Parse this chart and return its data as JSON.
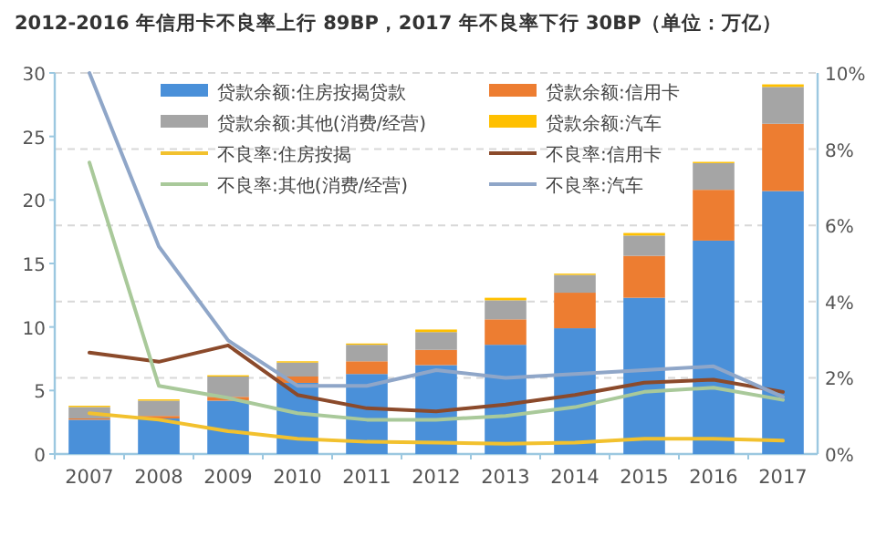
{
  "chart_data": {
    "type": "bar",
    "title": "2012-2016 年信用卡不良率上行 89BP，2017 年不良率下行 30BP（单位：万亿）",
    "categories": [
      "2007",
      "2008",
      "2009",
      "2010",
      "2011",
      "2012",
      "2013",
      "2014",
      "2015",
      "2016",
      "2017"
    ],
    "stacked": true,
    "series": [
      {
        "name": "贷款余额:住房按揭贷款",
        "color": "#4a90d9",
        "values": [
          2.7,
          2.8,
          4.2,
          5.6,
          6.3,
          7.0,
          8.6,
          9.9,
          12.3,
          16.8,
          20.7
        ]
      },
      {
        "name": "贷款余额:信用卡",
        "color": "#ed7d31",
        "values": [
          0.1,
          0.2,
          0.3,
          0.5,
          1.0,
          1.2,
          2.0,
          2.8,
          3.3,
          4.0,
          5.3
        ]
      },
      {
        "name": "贷款余额:其他(消费/经营)",
        "color": "#a5a5a5",
        "values": [
          0.9,
          1.2,
          1.6,
          1.1,
          1.3,
          1.4,
          1.5,
          1.4,
          1.6,
          2.1,
          2.9
        ]
      },
      {
        "name": "贷款余额:汽车",
        "color": "#ffc000",
        "values": [
          0.1,
          0.1,
          0.1,
          0.1,
          0.1,
          0.2,
          0.2,
          0.1,
          0.2,
          0.1,
          0.2
        ]
      },
      {
        "name": "不良率:住房按揭",
        "type": "line",
        "axis": "y2",
        "color": "#f2c12e",
        "values": [
          1.07,
          0.9,
          0.6,
          0.4,
          0.32,
          0.3,
          0.27,
          0.3,
          0.4,
          0.4,
          0.35
        ]
      },
      {
        "name": "不良率:信用卡",
        "type": "line",
        "axis": "y2",
        "color": "#8b4a2b",
        "values": [
          2.66,
          2.42,
          2.85,
          1.55,
          1.2,
          1.12,
          1.3,
          1.55,
          1.87,
          1.95,
          1.63
        ]
      },
      {
        "name": "不良率:其他(消费/经营)",
        "type": "line",
        "axis": "y2",
        "color": "#a9c99a",
        "values": [
          7.65,
          1.79,
          1.47,
          1.07,
          0.9,
          0.9,
          1.0,
          1.23,
          1.63,
          1.74,
          1.42
        ]
      },
      {
        "name": "不良率:汽车",
        "type": "line",
        "axis": "y2",
        "color": "#8fa6c8",
        "values": [
          10.0,
          5.45,
          2.98,
          1.79,
          1.79,
          2.2,
          2.0,
          2.1,
          2.2,
          2.3,
          1.5
        ]
      }
    ],
    "ylim": [
      0,
      30
    ],
    "yticks": [
      0,
      5,
      10,
      15,
      20,
      25,
      30
    ],
    "y2lim": [
      0,
      10
    ],
    "y2ticks": [
      {
        "value": 0,
        "label": "0%"
      },
      {
        "value": 2,
        "label": "2%"
      },
      {
        "value": 4,
        "label": "4%"
      },
      {
        "value": 6,
        "label": "6%"
      },
      {
        "value": 8,
        "label": "8%"
      },
      {
        "value": 10,
        "label": "10%"
      }
    ],
    "grid": "y",
    "legend": "top",
    "marker": "none",
    "line_style": "solid"
  }
}
